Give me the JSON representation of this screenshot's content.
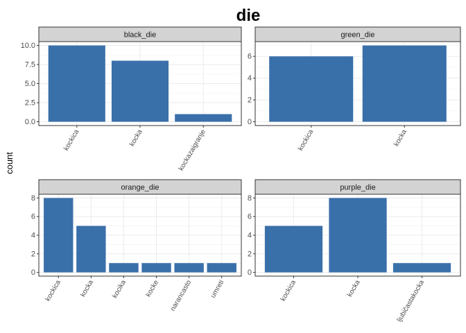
{
  "chart_data": {
    "type": "bar",
    "title": "die",
    "ylabel": "count",
    "bar_color": "#3A70AA",
    "strip_fill": "#D3D3D3",
    "grid": true,
    "panels": [
      {
        "name": "black_die",
        "categories": [
          "kockica",
          "kocka",
          "kockazaigranje"
        ],
        "values": [
          10,
          8,
          1
        ],
        "ylim": [
          0,
          10
        ],
        "yticks": [
          "0.0",
          "2.5",
          "5.0",
          "7.5",
          "10.0"
        ]
      },
      {
        "name": "green_die",
        "categories": [
          "kockica",
          "kocka"
        ],
        "values": [
          6,
          7
        ],
        "ylim": [
          0,
          7
        ],
        "yticks": [
          "0",
          "2",
          "4",
          "6"
        ]
      },
      {
        "name": "orange_die",
        "categories": [
          "kockica",
          "kocka",
          "kocika",
          "kocke",
          "narancasto",
          "umreti"
        ],
        "values": [
          8,
          5,
          1,
          1,
          1,
          1
        ],
        "ylim": [
          0,
          8
        ],
        "yticks": [
          "0",
          "2",
          "4",
          "6",
          "8"
        ]
      },
      {
        "name": "purple_die",
        "categories": [
          "kockica",
          "kocka",
          "ljubičastakocka"
        ],
        "values": [
          5,
          8,
          1
        ],
        "ylim": [
          0,
          8
        ],
        "yticks": [
          "0",
          "2",
          "4",
          "6",
          "8"
        ]
      }
    ]
  }
}
